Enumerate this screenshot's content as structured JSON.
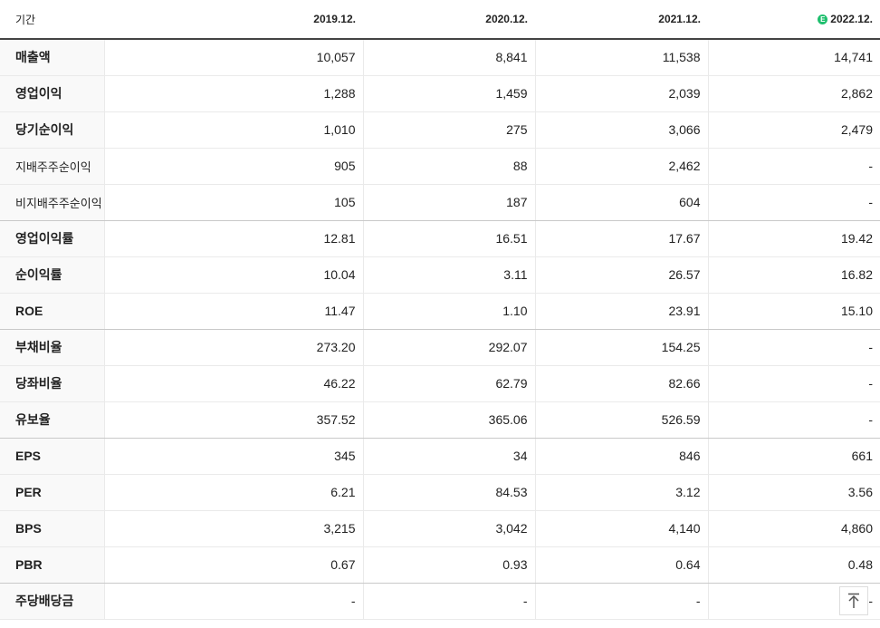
{
  "header": {
    "label": "기간",
    "columns": [
      "2019.12.",
      "2020.12.",
      "2021.12.",
      "2022.12."
    ],
    "estimate_badge": "E",
    "estimate_color": "#1fbf6e"
  },
  "rows": [
    {
      "label": "매출액",
      "values": [
        "10,057",
        "8,841",
        "11,538",
        "14,741"
      ]
    },
    {
      "label": "영업이익",
      "values": [
        "1,288",
        "1,459",
        "2,039",
        "2,862"
      ]
    },
    {
      "label": "당기순이익",
      "values": [
        "1,010",
        "275",
        "3,066",
        "2,479"
      ]
    },
    {
      "label": "지배주주순이익",
      "values": [
        "905",
        "88",
        "2,462",
        "-"
      ]
    },
    {
      "label": "비지배주주순이익",
      "values": [
        "105",
        "187",
        "604",
        "-"
      ]
    },
    {
      "label": "영업이익률",
      "values": [
        "12.81",
        "16.51",
        "17.67",
        "19.42"
      ]
    },
    {
      "label": "순이익률",
      "values": [
        "10.04",
        "3.11",
        "26.57",
        "16.82"
      ]
    },
    {
      "label": "ROE",
      "values": [
        "11.47",
        "1.10",
        "23.91",
        "15.10"
      ]
    },
    {
      "label": "부채비율",
      "values": [
        "273.20",
        "292.07",
        "154.25",
        "-"
      ]
    },
    {
      "label": "당좌비율",
      "values": [
        "46.22",
        "62.79",
        "82.66",
        "-"
      ]
    },
    {
      "label": "유보율",
      "values": [
        "357.52",
        "365.06",
        "526.59",
        "-"
      ]
    },
    {
      "label": "EPS",
      "values": [
        "345",
        "34",
        "846",
        "661"
      ]
    },
    {
      "label": "PER",
      "values": [
        "6.21",
        "84.53",
        "3.12",
        "3.56"
      ]
    },
    {
      "label": "BPS",
      "values": [
        "3,215",
        "3,042",
        "4,140",
        "4,860"
      ]
    },
    {
      "label": "PBR",
      "values": [
        "0.67",
        "0.93",
        "0.64",
        "0.48"
      ]
    },
    {
      "label": "주당배당금",
      "values": [
        "-",
        "-",
        "-",
        "-"
      ]
    }
  ],
  "scroll_top_icon": "arrow-up-to-top-icon"
}
